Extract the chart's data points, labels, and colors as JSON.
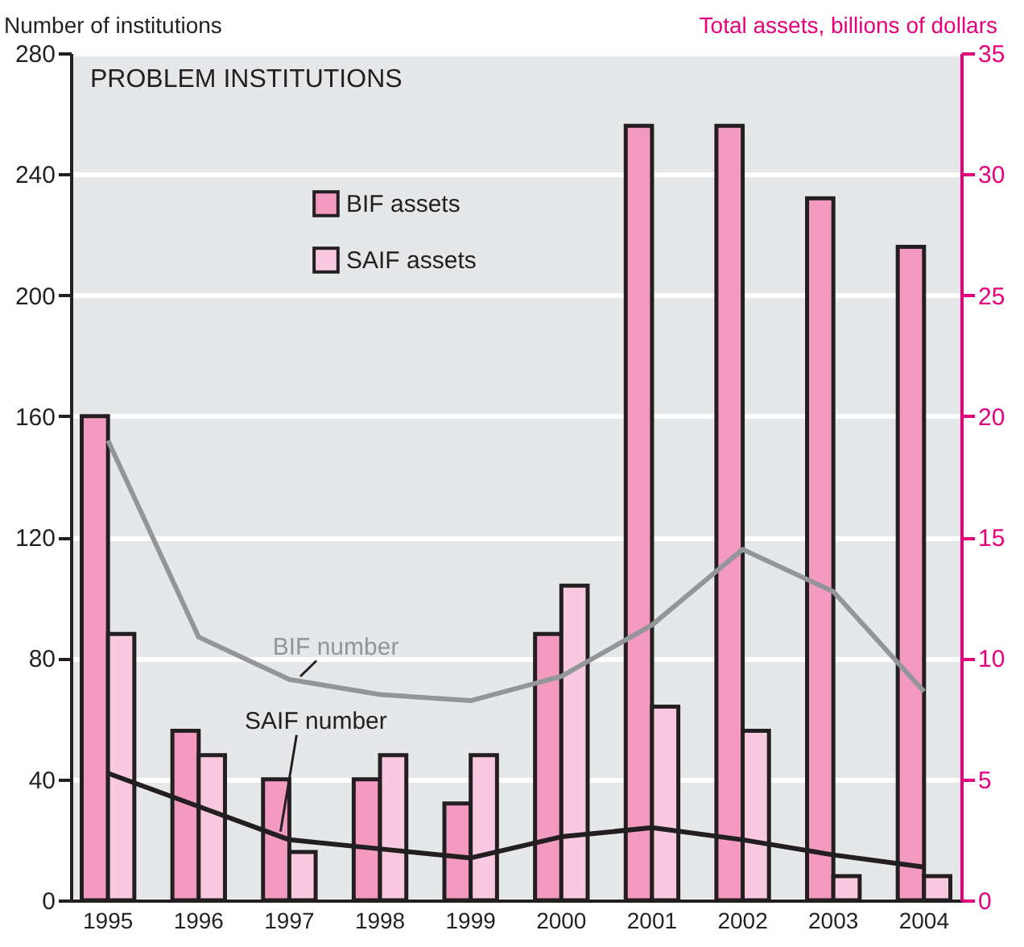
{
  "chart_data": {
    "type": "bar",
    "title": "PROBLEM INSTITUTIONS",
    "ylabel": "Number of institutions",
    "y2label": "Total assets, billions of dollars",
    "categories": [
      "1995",
      "1996",
      "1997",
      "1998",
      "1999",
      "2000",
      "2001",
      "2002",
      "2003",
      "2004"
    ],
    "series": [
      {
        "name": "BIF assets",
        "axis": "y2",
        "color": "#f49ac1",
        "values": [
          20,
          7,
          5,
          5,
          4,
          11,
          32,
          32,
          29,
          27
        ]
      },
      {
        "name": "SAIF assets",
        "axis": "y2",
        "color": "#f8c9df",
        "values": [
          11,
          6,
          2,
          6,
          6,
          13,
          8,
          7,
          1,
          1
        ]
      },
      {
        "name": "BIF number",
        "type": "line",
        "axis": "y",
        "color": "#939598",
        "values": [
          152,
          87,
          73,
          68,
          66,
          74,
          91,
          116,
          102,
          69
        ]
      },
      {
        "name": "SAIF number",
        "type": "line",
        "axis": "y",
        "color": "#231f20",
        "values": [
          42,
          31,
          20,
          17,
          14,
          21,
          24,
          20,
          15,
          11
        ]
      }
    ],
    "ylim": [
      0,
      280
    ],
    "yticks": [
      0,
      40,
      80,
      120,
      160,
      200,
      240,
      280
    ],
    "y2lim": [
      0,
      35
    ],
    "y2ticks": [
      0,
      5,
      10,
      15,
      20,
      25,
      30,
      35
    ],
    "grid": "y",
    "legend": "top",
    "marker": "none",
    "line_style": "solid"
  }
}
